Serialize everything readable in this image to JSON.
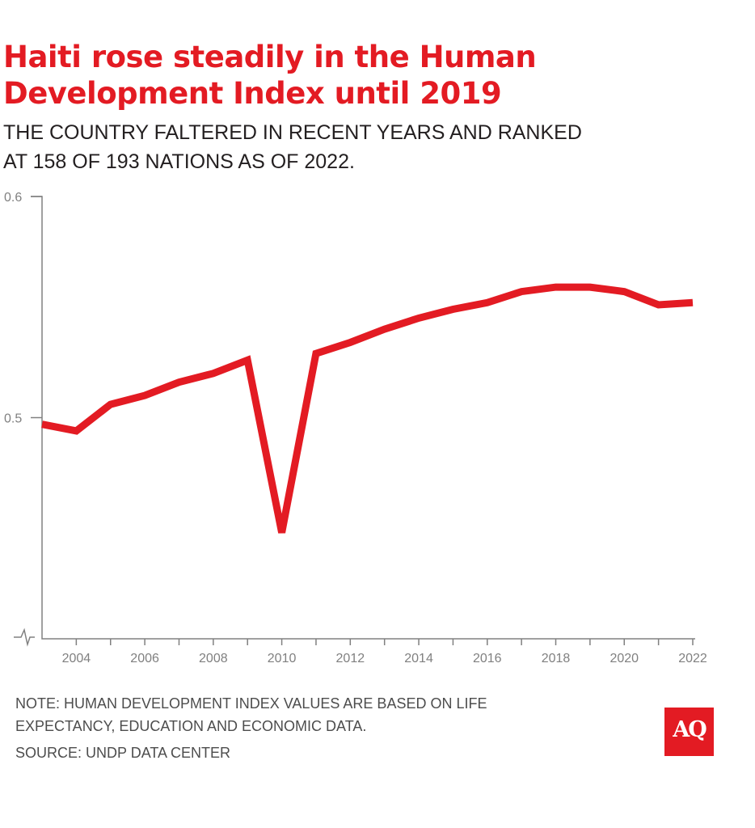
{
  "chart_data": {
    "type": "line",
    "title": "Haiti rose steadily in the Human Development Index until 2019",
    "subtitle_lines": [
      "THE COUNTRY FALTERED IN RECENT YEARS AND RANKED",
      "AT 158 OF 193 NATIONS AS OF 2022."
    ],
    "x": [
      2003,
      2004,
      2005,
      2006,
      2007,
      2008,
      2009,
      2010,
      2011,
      2012,
      2013,
      2014,
      2015,
      2016,
      2017,
      2018,
      2019,
      2020,
      2021,
      2022
    ],
    "values": [
      0.497,
      0.494,
      0.506,
      0.51,
      0.516,
      0.52,
      0.526,
      0.448,
      0.529,
      0.534,
      0.54,
      0.545,
      0.549,
      0.552,
      0.557,
      0.559,
      0.559,
      0.557,
      0.551,
      0.552
    ],
    "xlim": [
      2003,
      2022
    ],
    "ylim": [
      0.4,
      0.6
    ],
    "y_axis_break": true,
    "x_ticks": [
      2004,
      2006,
      2008,
      2010,
      2012,
      2014,
      2016,
      2018,
      2020,
      2022
    ],
    "y_ticks": [
      "0.5",
      "0.6"
    ],
    "line_color": "#e31b23",
    "grid": false
  },
  "notes": {
    "note_lines": [
      "NOTE: HUMAN DEVELOPMENT INDEX VALUES ARE BASED ON LIFE",
      "EXPECTANCY, EDUCATION AND ECONOMIC DATA."
    ],
    "source": "SOURCE: UNDP DATA CENTER"
  },
  "logo": {
    "text": "AQ",
    "color": "#e31b23"
  }
}
